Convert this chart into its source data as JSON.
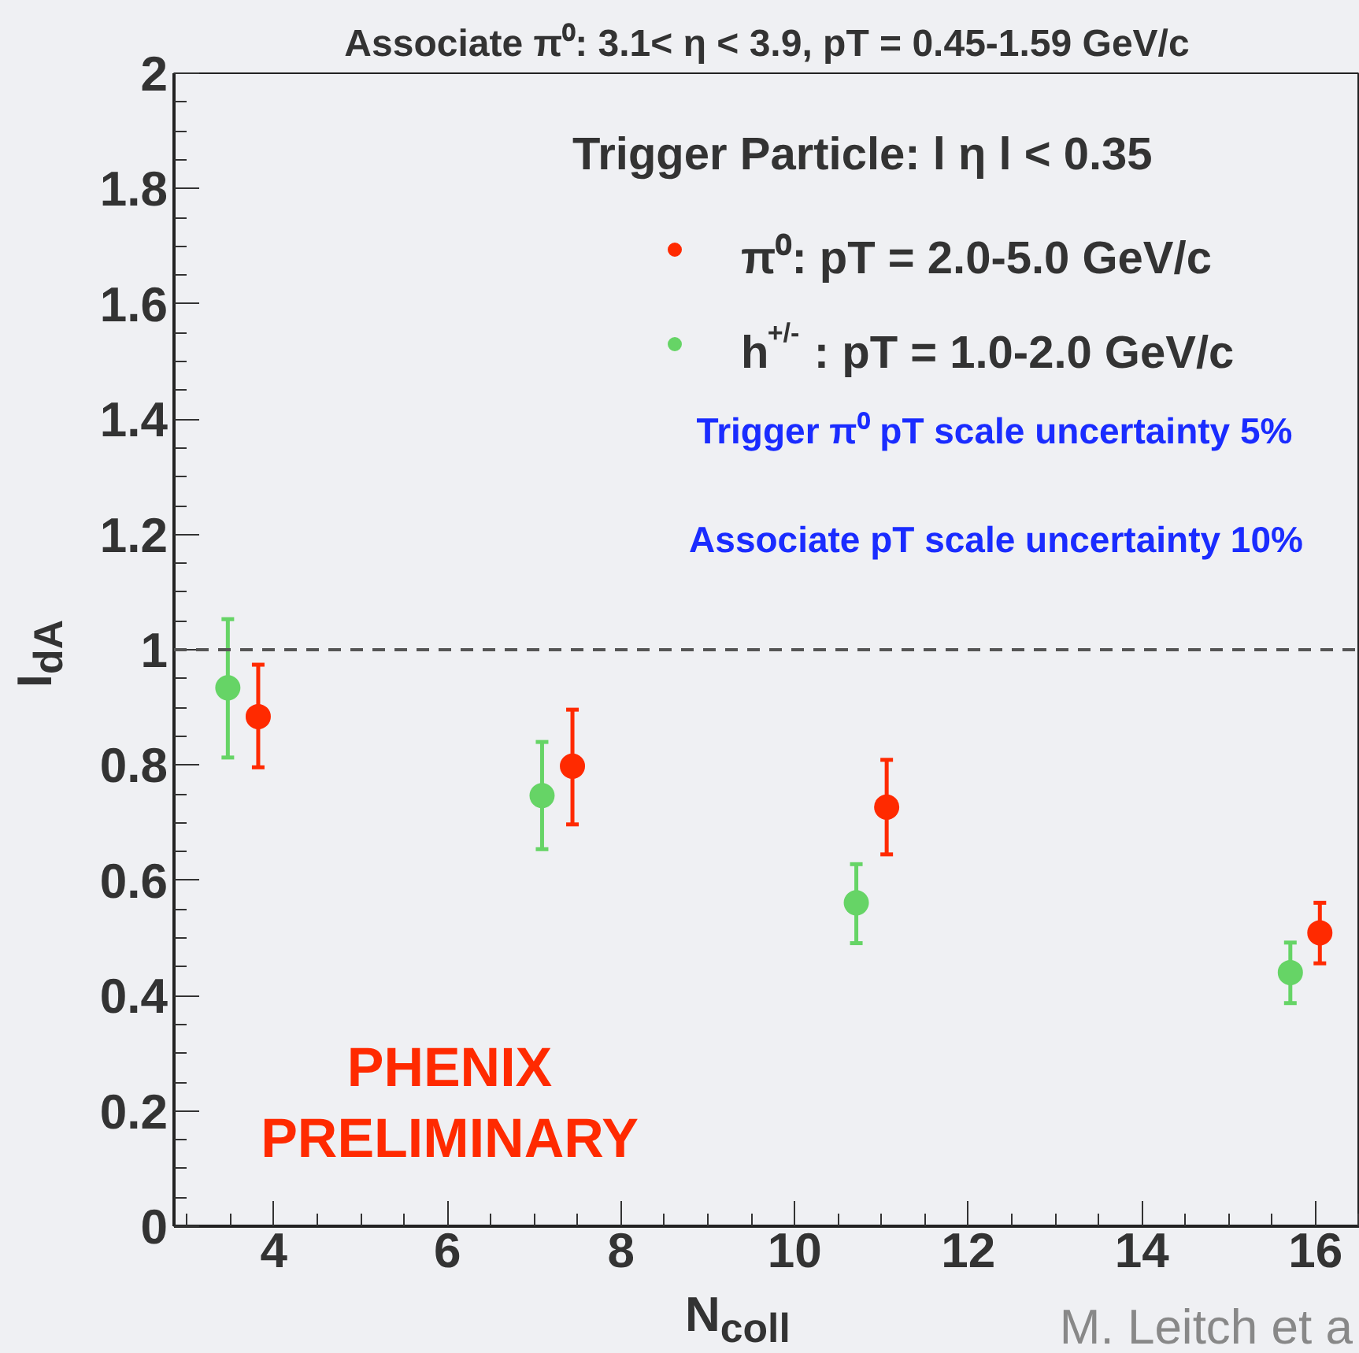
{
  "chart_data": {
    "type": "scatter",
    "title": "Associate π⁰: 3.1< η < 3.9, pT = 0.45-1.59 GeV/c",
    "xlabel": "N$_{coll}$",
    "ylabel": "I$_{dA}$",
    "legend_title": "Trigger Particle: l  η l < 0.35",
    "series": [
      {
        "name": "π⁰: pT = 2.0-5.0 GeV/c",
        "color": "#ff2a00",
        "x": [
          3.82,
          7.44,
          11.06,
          16.05
        ],
        "values": [
          0.884,
          0.798,
          0.727,
          0.509
        ],
        "errors": [
          [
            0.796,
            0.974
          ],
          [
            0.697,
            0.896
          ],
          [
            0.645,
            0.809
          ],
          [
            0.456,
            0.561
          ]
        ]
      },
      {
        "name": "h$^{+/-}$: pT = 1.0-2.0 GeV/c",
        "color": "#66d466",
        "x": [
          3.47,
          7.09,
          10.71,
          15.71
        ],
        "values": [
          0.934,
          0.747,
          0.561,
          0.44
        ],
        "errors": [
          [
            0.813,
            1.053
          ],
          [
            0.654,
            0.84
          ],
          [
            0.491,
            0.628
          ],
          [
            0.387,
            0.492
          ]
        ]
      }
    ],
    "annotations": [
      "Trigger π⁰ pT scale uncertainty 5%",
      "Associate pT scale uncertainty 10%",
      "PHENIX",
      "PRELIMINARY",
      "M. Leitch et a"
    ],
    "ref_lines": [
      {
        "axis": "y",
        "value": 1,
        "line_style": "dashed",
        "color": "#555555"
      }
    ],
    "xlim": [
      2.85,
      16.51
    ],
    "ylim": [
      0,
      2
    ],
    "xticks": [
      4,
      6,
      8,
      10,
      12,
      14,
      16
    ],
    "yticks": [
      0,
      0.2,
      0.4,
      0.6,
      0.8,
      1,
      1.2,
      1.4,
      1.6,
      1.8,
      2
    ],
    "marker": "circle",
    "grid": false,
    "legend": "top right"
  }
}
